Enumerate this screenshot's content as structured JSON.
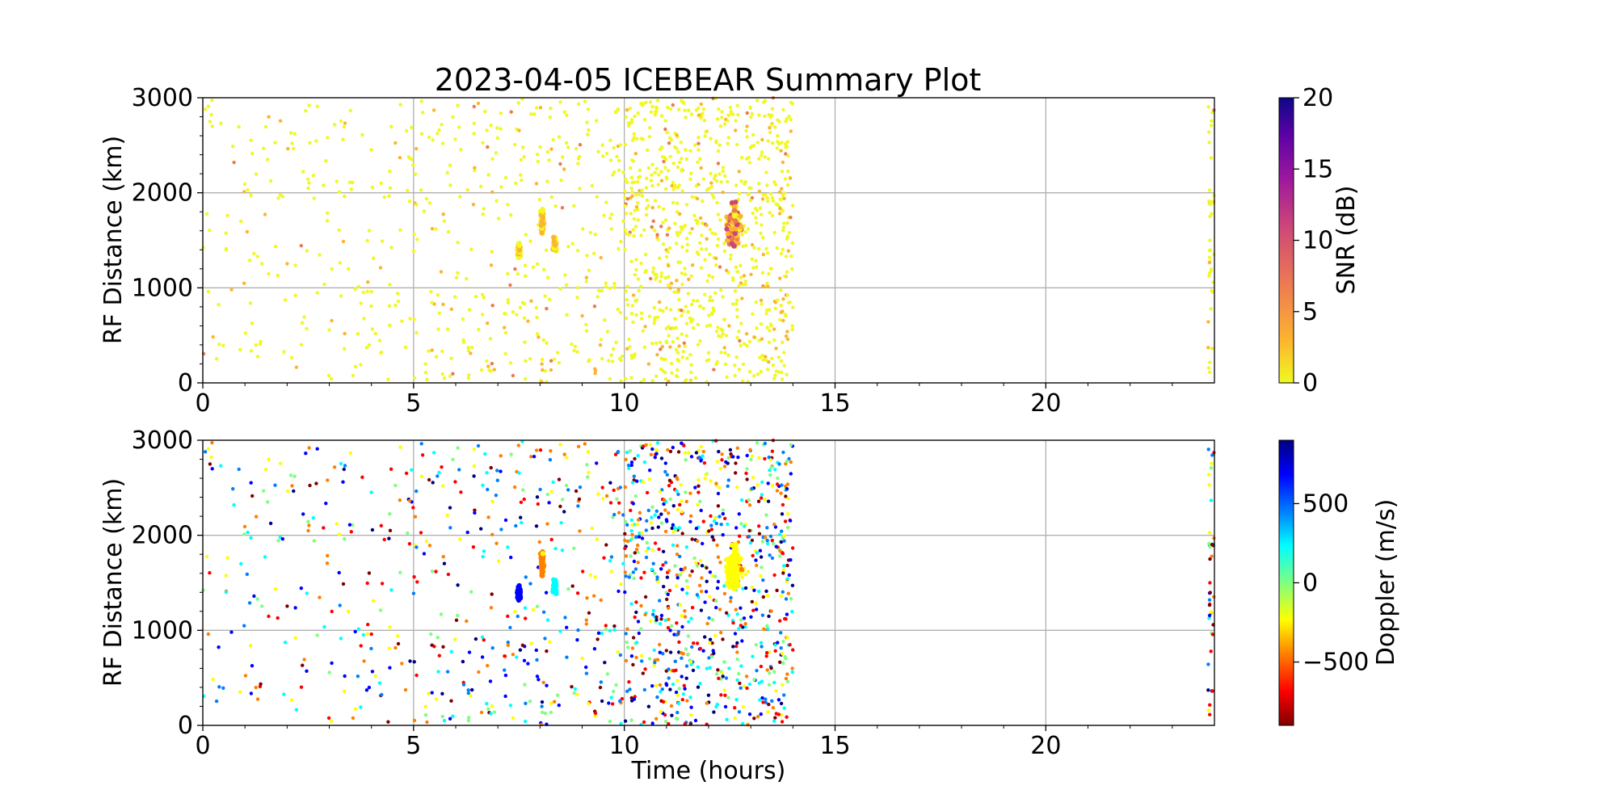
{
  "title": "2023-04-05 ICEBEAR Summary Plot",
  "chart_data": [
    {
      "type": "scatter",
      "panel": "top",
      "title": "2023-04-05 ICEBEAR Summary Plot",
      "xlabel": "",
      "ylabel": "RF Distance (km)",
      "xlim": [
        0,
        24
      ],
      "ylim": [
        0,
        3000
      ],
      "xticks": [
        "0",
        "5",
        "10",
        "15",
        "20"
      ],
      "yticks": [
        "0",
        "1000",
        "2000",
        "3000"
      ],
      "grid": true,
      "colorbar": {
        "label": "SNR (dB)",
        "range": [
          0,
          20
        ],
        "ticks": [
          "0",
          "5",
          "10",
          "15",
          "20"
        ],
        "colormap": "plasma_r",
        "colors": [
          "#f0f921",
          "#fdb42f",
          "#ed7953",
          "#cc4778",
          "#9c179e",
          "#5c01a6",
          "#0d0887"
        ]
      },
      "description_of_data": "scattered echoes from 0 to ~14 h and at ~24 h; dense clusters near 7.5-8.4 h (1300-2000 km) and 12.2-13.2 h (1200-2100 km)"
    },
    {
      "type": "scatter",
      "panel": "bottom",
      "xlabel": "Time (hours)",
      "ylabel": "RF Distance (km)",
      "xlim": [
        0,
        24
      ],
      "ylim": [
        0,
        3000
      ],
      "xticks": [
        "0",
        "5",
        "10",
        "15",
        "20"
      ],
      "yticks": [
        "0",
        "1000",
        "2000",
        "3000"
      ],
      "grid": true,
      "colorbar": {
        "label": "Doppler (m/s)",
        "range": [
          -900,
          900
        ],
        "ticks": [
          "−500",
          "0",
          "500"
        ],
        "tick_values": [
          -500,
          0,
          500
        ],
        "colormap": "jet_r",
        "colors": [
          "#7f0000",
          "#ff0000",
          "#ff7f00",
          "#ffff00",
          "#7fff7f",
          "#00ffff",
          "#007fff",
          "#0000ff",
          "#00007f"
        ]
      }
    }
  ]
}
